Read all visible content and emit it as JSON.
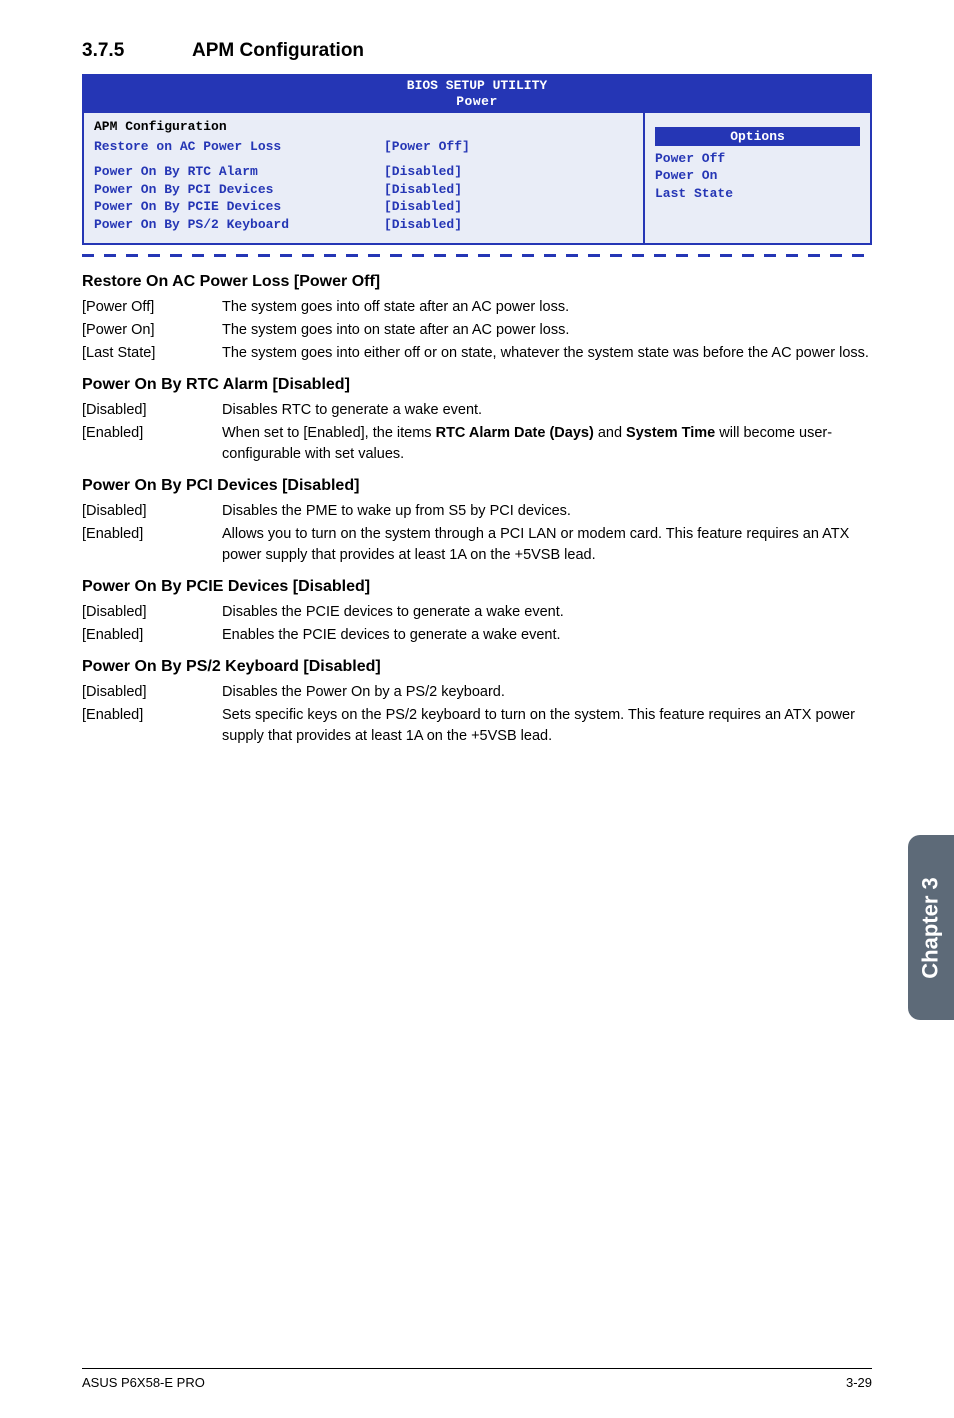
{
  "colors": {
    "bios_blue": "#2536b5",
    "bios_bg": "#e9edf7",
    "sidetab_bg": "#5d6a78",
    "page_bg": "#ffffff",
    "text": "#000000"
  },
  "section": {
    "number": "3.7.5",
    "title": "APM Configuration"
  },
  "bios": {
    "title_line1": "BIOS SETUP UTILITY",
    "title_line2": "Power",
    "header": "APM Configuration",
    "rows": [
      {
        "label": "Restore on AC Power Loss",
        "value": "[Power Off]"
      },
      {
        "label": "",
        "value": ""
      },
      {
        "label": "Power On By RTC Alarm",
        "value": "[Disabled]"
      },
      {
        "label": "Power On By PCI Devices",
        "value": "[Disabled]"
      },
      {
        "label": "Power On By PCIE Devices",
        "value": "[Disabled]"
      },
      {
        "label": "Power On By PS/2 Keyboard",
        "value": "[Disabled]"
      }
    ],
    "options_header": "Options",
    "options": [
      "Power Off",
      "Power On",
      "Last State"
    ]
  },
  "subsections": [
    {
      "heading": "Restore On AC Power Loss [Power Off]",
      "rows": [
        {
          "key": "[Power Off]",
          "text": "The system goes into off state after an AC power loss."
        },
        {
          "key": "[Power On]",
          "text": "The system goes into on state after an AC power loss."
        },
        {
          "key": "[Last State]",
          "text": "The system goes into either off or on state, whatever the system state was before the AC power loss."
        }
      ]
    },
    {
      "heading": "Power On By RTC Alarm [Disabled]",
      "rows": [
        {
          "key": "[Disabled]",
          "text": "Disables RTC to generate a wake event."
        },
        {
          "key": "[Enabled]",
          "text_html": "When set to [Enabled], the items <b>RTC Alarm Date (Days)</b> and <b>System Time</b> will become user-configurable with set values."
        }
      ]
    },
    {
      "heading": "Power On By PCI Devices [Disabled]",
      "rows": [
        {
          "key": "[Disabled]",
          "text": "Disables the PME to wake up from S5 by PCI devices."
        },
        {
          "key": "[Enabled]",
          "text": "Allows you to turn on the system through a PCI LAN or modem card. This feature requires an ATX power supply that provides at least 1A on the +5VSB lead."
        }
      ]
    },
    {
      "heading": "Power On By PCIE Devices [Disabled]",
      "rows": [
        {
          "key": "[Disabled]",
          "text": "Disables the PCIE devices to generate a wake event."
        },
        {
          "key": "[Enabled]",
          "text": "Enables the PCIE devices to generate a wake event."
        }
      ]
    },
    {
      "heading": "Power On By PS/2 Keyboard [Disabled]",
      "rows": [
        {
          "key": "[Disabled]",
          "text": "Disables the Power On by a PS/2 keyboard."
        },
        {
          "key": "[Enabled]",
          "text": "Sets specific keys on the PS/2 keyboard to turn on the system. This feature requires an ATX power supply that provides at least 1A on the +5VSB lead."
        }
      ]
    }
  ],
  "sidetab": "Chapter 3",
  "footer": {
    "left": "ASUS P6X58-E PRO",
    "right": "3-29"
  }
}
